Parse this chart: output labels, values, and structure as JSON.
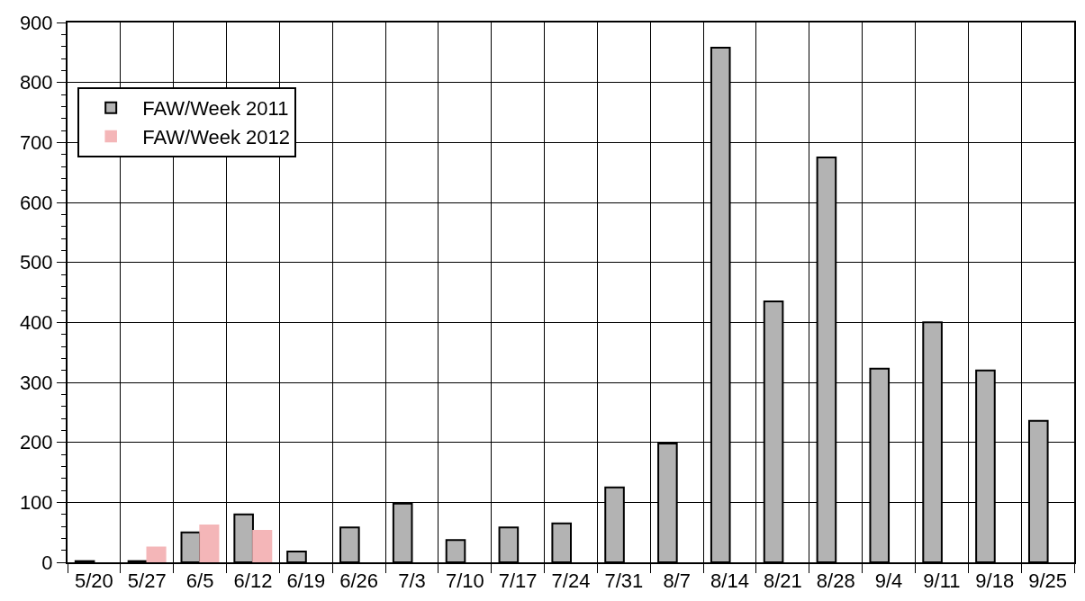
{
  "chart_data": {
    "type": "bar",
    "categories": [
      "5/20",
      "5/27",
      "6/5",
      "6/12",
      "6/19",
      "6/26",
      "7/3",
      "7/10",
      "7/17",
      "7/24",
      "7/31",
      "8/7",
      "8/14",
      "8/21",
      "8/28",
      "9/4",
      "9/11",
      "9/18",
      "9/25"
    ],
    "series": [
      {
        "name": "FAW/Week 2011",
        "color": "#b3b3b3",
        "values": [
          2,
          2,
          50,
          80,
          18,
          58,
          98,
          37,
          58,
          65,
          125,
          198,
          858,
          435,
          675,
          323,
          400,
          320,
          236
        ]
      },
      {
        "name": "FAW/Week 2012",
        "color": "#f4b6b8",
        "values": [
          null,
          25,
          62,
          53,
          null,
          null,
          null,
          null,
          null,
          null,
          null,
          null,
          null,
          null,
          null,
          null,
          null,
          null,
          null
        ]
      }
    ],
    "ylim": [
      0,
      900
    ],
    "yticks": [
      0,
      100,
      200,
      300,
      400,
      500,
      600,
      700,
      800,
      900
    ],
    "grid": true,
    "legend": "top left"
  }
}
